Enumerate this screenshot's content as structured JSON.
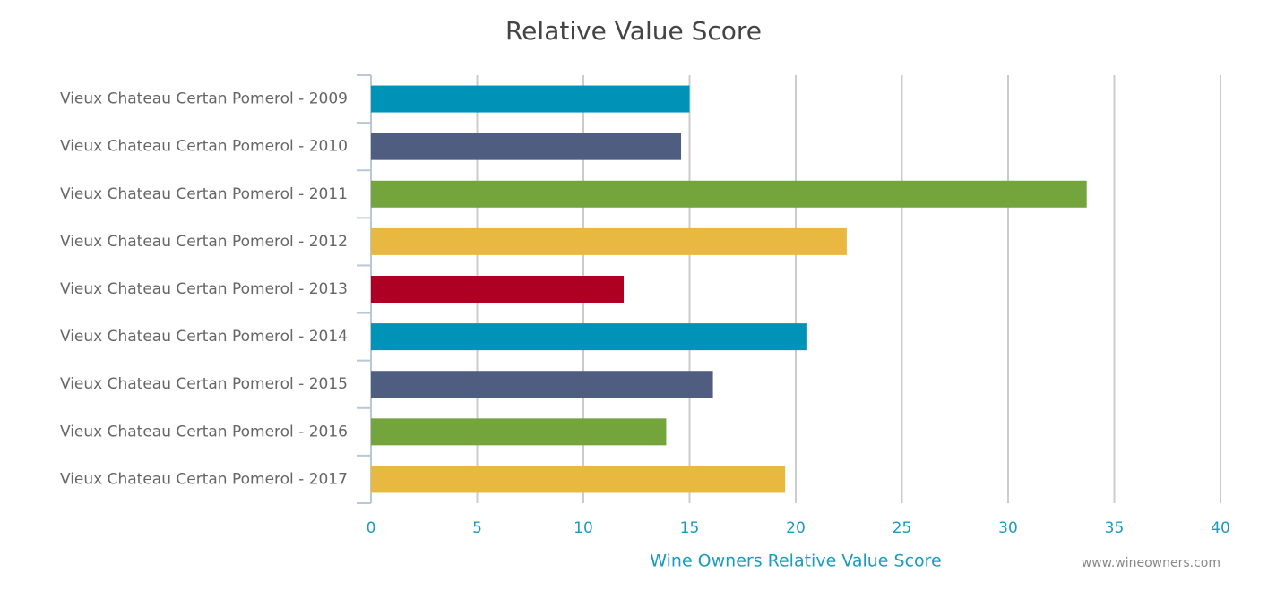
{
  "chart_data": {
    "type": "bar",
    "orientation": "horizontal",
    "title": "Relative Value Score",
    "categories": [
      "Vieux Chateau Certan Pomerol - 2009",
      "Vieux Chateau Certan Pomerol - 2010",
      "Vieux Chateau Certan Pomerol - 2011",
      "Vieux Chateau Certan Pomerol - 2012",
      "Vieux Chateau Certan Pomerol - 2013",
      "Vieux Chateau Certan Pomerol - 2014",
      "Vieux Chateau Certan Pomerol - 2015",
      "Vieux Chateau Certan Pomerol - 2016",
      "Vieux Chateau Certan Pomerol - 2017"
    ],
    "values": [
      15,
      14.6,
      33.7,
      22.4,
      11.9,
      20.5,
      16.1,
      13.9,
      19.5
    ],
    "colors": [
      "#0093b8",
      "#4f5e80",
      "#73a53c",
      "#e9b841",
      "#ad0023",
      "#0093b8",
      "#4f5e80",
      "#73a53c",
      "#e9b841"
    ],
    "xlabel": "Wine Owners Relative Value Score",
    "xlim": [
      0,
      40
    ],
    "xticks": [
      0,
      5,
      10,
      15,
      20,
      25,
      30,
      35,
      40
    ],
    "grid": true,
    "credit": "www.wineowners.com"
  }
}
